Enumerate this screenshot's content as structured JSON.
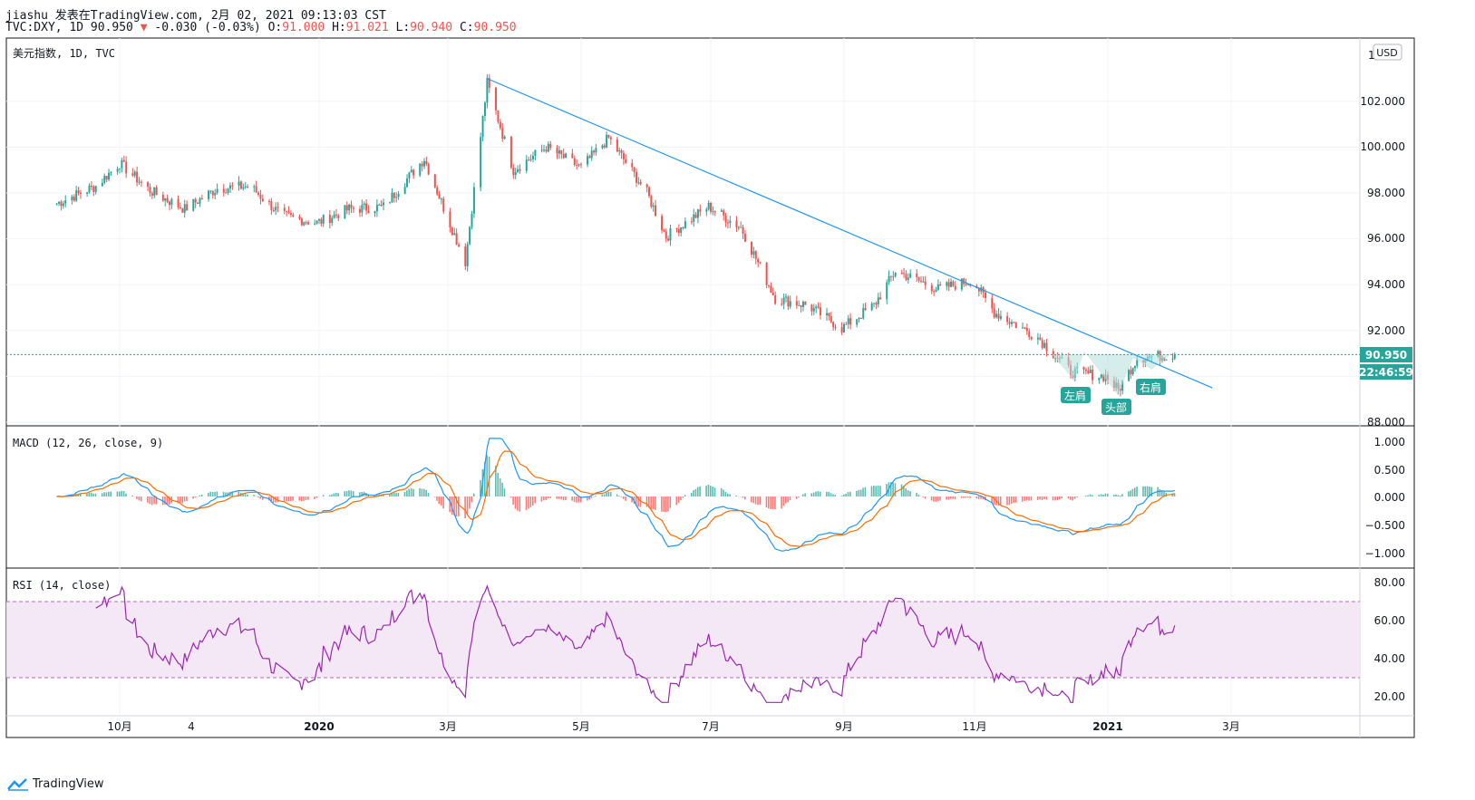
{
  "header": {
    "line1": "jiashu 发表在TradingView.com, 2月 02, 2021 09:13:03 CST",
    "symbol": "TVC:DXY, 1D 90.950",
    "change": "-0.030 (-0.03%)",
    "o_label": "O:",
    "o_val": "91.000",
    "h_label": "H:",
    "h_val": "91.021",
    "l_label": "L:",
    "l_val": "90.940",
    "c_label": "C:",
    "c_val": "90.950"
  },
  "main_pane": {
    "title": "美元指数, 1D, TVC",
    "currency": "USD",
    "price_tag": "90.950",
    "countdown": "22:46:59",
    "y_ticks": [
      "1",
      "102.000",
      "100.000",
      "98.000",
      "96.000",
      "94.000",
      "92.000",
      "88.000"
    ],
    "annotations": {
      "left_shoulder": "左肩",
      "head": "头部",
      "right_shoulder": "右肩"
    }
  },
  "macd_pane": {
    "title": "MACD (12, 26, close, 9)",
    "y_ticks": [
      "1.000",
      "0.500",
      "0.000",
      "−0.500",
      "−1.000"
    ]
  },
  "rsi_pane": {
    "title": "RSI (14, close)",
    "y_ticks": [
      "80.00",
      "60.00",
      "40.00",
      "20.00"
    ]
  },
  "x_axis": {
    "ticks": [
      "10月",
      "4",
      "2020",
      "3月",
      "5月",
      "7月",
      "9月",
      "11月",
      "2021",
      "3月"
    ]
  },
  "footer": {
    "brand": "TradingView"
  },
  "colors": {
    "up": "#26a69a",
    "down": "#ef5350",
    "trend": "#2196f3",
    "macd": "#2196f3",
    "signal": "#ff6d00",
    "rsi": "#9c27b0",
    "rsi_band": "#e1bee7"
  },
  "chart_data": {
    "type": "candlestick",
    "ylim": [
      88,
      103
    ],
    "close_path": [
      [
        "2019-09-01",
        97.5
      ],
      [
        "2019-09-20",
        98.3
      ],
      [
        "2019-10-01",
        99.3
      ],
      [
        "2019-10-15",
        98.1
      ],
      [
        "2019-10-31",
        97.3
      ],
      [
        "2019-11-15",
        98.2
      ],
      [
        "2019-11-30",
        98.3
      ],
      [
        "2019-12-15",
        97.0
      ],
      [
        "2019-12-31",
        96.7
      ],
      [
        "2020-01-15",
        97.3
      ],
      [
        "2020-01-31",
        97.4
      ],
      [
        "2020-02-19",
        99.5
      ],
      [
        "2020-03-09",
        95.0
      ],
      [
        "2020-03-19",
        102.8
      ],
      [
        "2020-03-31",
        99.0
      ],
      [
        "2020-04-15",
        100.0
      ],
      [
        "2020-05-01",
        99.1
      ],
      [
        "2020-05-14",
        100.4
      ],
      [
        "2020-06-01",
        98.0
      ],
      [
        "2020-06-10",
        96.1
      ],
      [
        "2020-06-30",
        97.4
      ],
      [
        "2020-07-15",
        96.5
      ],
      [
        "2020-07-31",
        93.4
      ],
      [
        "2020-08-15",
        93.1
      ],
      [
        "2020-08-31",
        92.1
      ],
      [
        "2020-09-15",
        93.1
      ],
      [
        "2020-09-25",
        94.6
      ],
      [
        "2020-10-15",
        93.8
      ],
      [
        "2020-10-31",
        94.2
      ],
      [
        "2020-11-10",
        92.8
      ],
      [
        "2020-11-30",
        91.7
      ],
      [
        "2020-12-15",
        90.2
      ],
      [
        "2020-12-31",
        90.0
      ],
      [
        "2021-01-06",
        89.4
      ],
      [
        "2021-01-15",
        90.8
      ],
      [
        "2021-02-02",
        90.95
      ]
    ],
    "trendline": [
      [
        "2020-03-19",
        102.99
      ],
      [
        "2021-02-20",
        89.5
      ]
    ],
    "macd_range": [
      -1.1,
      1.1
    ],
    "rsi_range": [
      15,
      85
    ],
    "rsi_band": [
      30,
      70
    ]
  }
}
